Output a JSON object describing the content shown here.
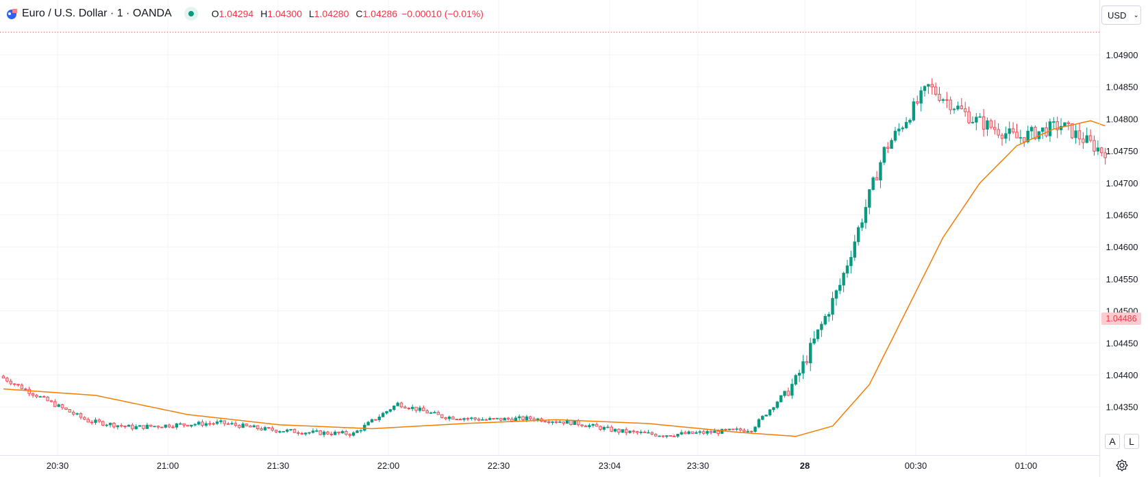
{
  "legend": {
    "symbol": "Euro / U.S. Dollar · 1 · OANDA",
    "open_label": "O",
    "open": "1.04294",
    "high_label": "H",
    "high": "1.04300",
    "low_label": "L",
    "low": "1.04280",
    "close_label": "C",
    "close": "1.04286",
    "change": "−0.00010 (−0.01%)"
  },
  "currency_button": {
    "label": "USD"
  },
  "scale_buttons": {
    "auto": "A",
    "log": "L"
  },
  "price_tag": "1.04486",
  "colors": {
    "up": "#089981",
    "down": "#f23645",
    "ma": "#f57c00",
    "grid": "#f0f3fa",
    "tag": "#fccbcd"
  },
  "chart_data": {
    "type": "candlestick",
    "interval": "1 minute",
    "y_ticks": [
      "1.04900",
      "1.04850",
      "1.04800",
      "1.04750",
      "1.04700",
      "1.04650",
      "1.04600",
      "1.04550",
      "1.04500",
      "1.04450",
      "1.04400",
      "1.04350"
    ],
    "x_ticks": [
      "20:30",
      "21:00",
      "21:30",
      "22:00",
      "22:30",
      "23:04",
      "23:30",
      "28",
      "00:30",
      "01:00"
    ],
    "ylim": [
      1.043,
      1.0494
    ],
    "trend_anchors": {
      "time_index": [
        0,
        12,
        24,
        36,
        48,
        60,
        72,
        84,
        96,
        108,
        120,
        132,
        144,
        156,
        168,
        180,
        192,
        204,
        216,
        228,
        240,
        252,
        264,
        276,
        288,
        299
      ],
      "price": [
        1.04398,
        1.04362,
        1.04328,
        1.04318,
        1.04322,
        1.04325,
        1.04315,
        1.0431,
        1.04308,
        1.04355,
        1.04335,
        1.0433,
        1.04332,
        1.04325,
        1.04312,
        1.04306,
        1.0431,
        1.04315,
        1.0439,
        1.0454,
        1.0475,
        1.0485,
        1.048,
        1.0477,
        1.0479,
        1.0475
      ]
    },
    "moving_average": {
      "type": "line",
      "color": "#f57c00",
      "time_index": [
        0,
        25,
        50,
        75,
        100,
        125,
        150,
        175,
        200,
        215,
        225,
        235,
        245,
        255,
        265,
        275,
        285,
        295,
        299
      ],
      "price": [
        1.04378,
        1.04368,
        1.04338,
        1.04322,
        1.04316,
        1.04324,
        1.0433,
        1.04324,
        1.0431,
        1.04304,
        1.0432,
        1.04385,
        1.045,
        1.04615,
        1.047,
        1.04758,
        1.04784,
        1.04797,
        1.04789
      ]
    }
  }
}
